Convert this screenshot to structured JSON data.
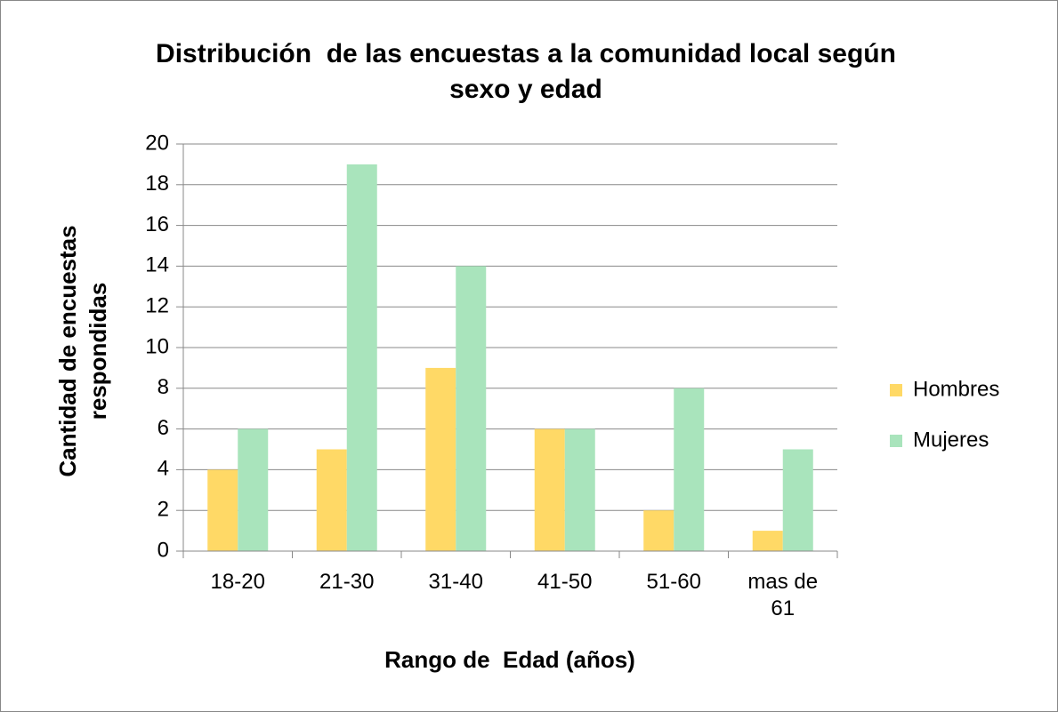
{
  "chart_data": {
    "type": "bar",
    "title": "Distribución  de las encuestas a la comunidad local según sexo y edad",
    "xlabel": "Rango de  Edad (años)",
    "ylabel": "Cantidad de encuestas respondidas",
    "categories": [
      "18-20",
      "21-30",
      "31-40",
      "41-50",
      "51-60",
      "mas de 61"
    ],
    "series": [
      {
        "name": "Hombres",
        "color": "#ffd966",
        "values": [
          4,
          5,
          9,
          6,
          2,
          1
        ]
      },
      {
        "name": "Mujeres",
        "color": "#a9e4bc",
        "values": [
          6,
          19,
          14,
          6,
          8,
          5
        ]
      }
    ],
    "ylim": [
      0,
      20
    ],
    "yticks": [
      0,
      2,
      4,
      6,
      8,
      10,
      12,
      14,
      16,
      18,
      20
    ],
    "grid": true,
    "legend": "right"
  }
}
